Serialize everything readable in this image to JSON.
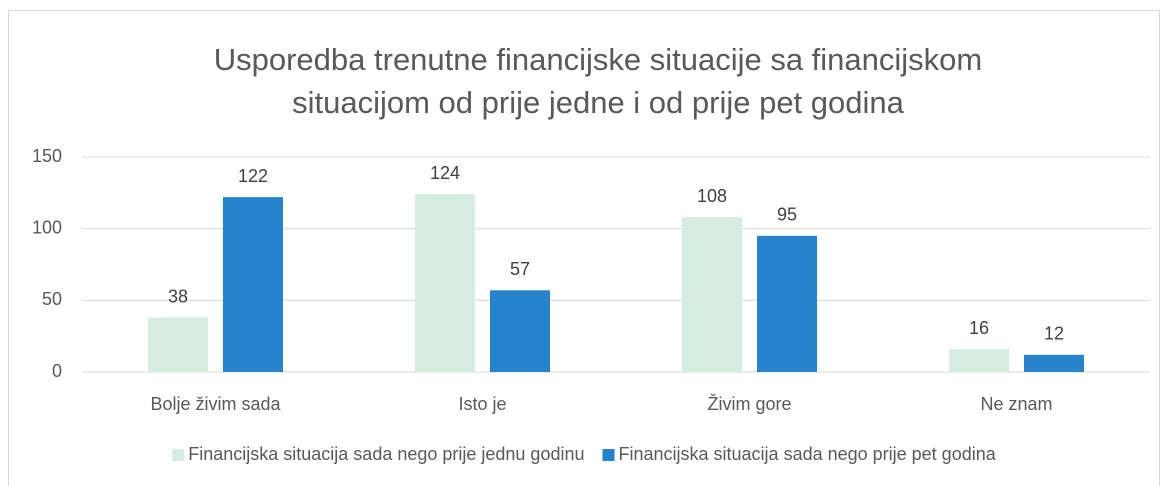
{
  "chart_data": {
    "type": "bar",
    "title": [
      "Usporedba trenutne financijske situacije sa financijskom",
      "situacijom od prije jedne i od prije pet godina"
    ],
    "categories": [
      "Bolje živim sada",
      "Isto je",
      "Živim gore",
      "Ne znam"
    ],
    "series": [
      {
        "name": "Financijska situacija sada nego prije jednu godinu",
        "color": "#d5ece0",
        "values": [
          38,
          124,
          108,
          16
        ]
      },
      {
        "name": "Financijska situacija sada nego prije pet godina",
        "color": "#2783cc",
        "values": [
          122,
          57,
          95,
          12
        ]
      }
    ],
    "ylim": [
      0,
      150
    ],
    "yticks": [
      0,
      50,
      100,
      150
    ],
    "grid": true,
    "legend": "bottom"
  }
}
